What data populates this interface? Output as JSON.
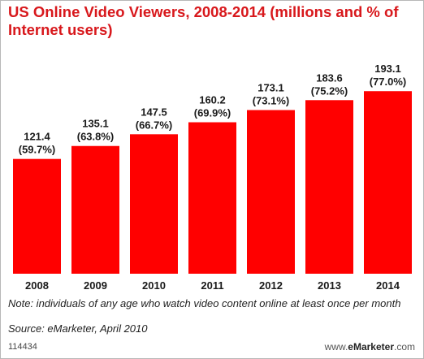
{
  "chart_data": {
    "type": "bar",
    "title": "US Online Video Viewers, 2008-2014 (millions and % of Internet users)",
    "categories": [
      "2008",
      "2009",
      "2010",
      "2011",
      "2012",
      "2013",
      "2014"
    ],
    "values": [
      121.4,
      135.1,
      147.5,
      160.2,
      173.1,
      183.6,
      193.1
    ],
    "shares": [
      "(59.7%)",
      "(63.8%)",
      "(66.7%)",
      "(69.9%)",
      "(73.1%)",
      "(75.2%)",
      "(77.0%)"
    ],
    "value_labels": [
      "121.4",
      "135.1",
      "147.5",
      "160.2",
      "173.1",
      "183.6",
      "193.1"
    ],
    "bar_color": "#ff0000",
    "ylim": [
      0,
      200
    ],
    "grid": false,
    "xlabel": "",
    "ylabel": ""
  },
  "note": "Note: individuals of any age who watch video content online at least once per month",
  "source": "Source: eMarketer, April 2010",
  "footer_id": "114434",
  "brand": {
    "prefix": "www.",
    "name": "eMarketer",
    "suffix": ".com"
  }
}
